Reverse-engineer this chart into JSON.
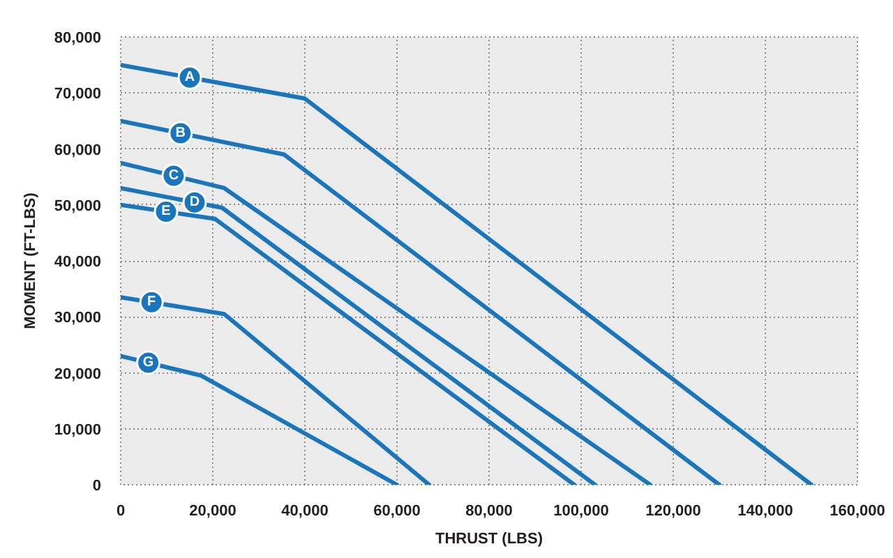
{
  "chart_data": {
    "type": "line",
    "xlabel": "THRUST (LBS)",
    "ylabel": "MOMENT (FT-LBS)",
    "xlim": [
      0,
      160000
    ],
    "ylim": [
      0,
      80000
    ],
    "xticks": [
      0,
      {
        "value": 20000,
        "label": "20,000"
      },
      {
        "value": 40000,
        "label": "40,000"
      },
      {
        "value": 60000,
        "label": "60,000"
      },
      {
        "value": 80000,
        "label": "80,000"
      },
      {
        "value": 100000,
        "label": "100,000"
      },
      {
        "value": 120000,
        "label": "120,000"
      },
      {
        "value": 140000,
        "label": "140,000"
      },
      {
        "value": 160000,
        "label": "160,000"
      }
    ],
    "yticks": [
      0,
      {
        "value": 10000,
        "label": "10,000"
      },
      {
        "value": 20000,
        "label": "20,000"
      },
      {
        "value": 30000,
        "label": "30,000"
      },
      {
        "value": 40000,
        "label": "40,000"
      },
      {
        "value": 50000,
        "label": "50,000"
      },
      {
        "value": 60000,
        "label": "60,000"
      },
      {
        "value": 70000,
        "label": "70,000"
      },
      {
        "value": 80000,
        "label": "80,000"
      }
    ],
    "grid": true,
    "series": [
      {
        "name": "A",
        "color": "#1a76bc",
        "x": [
          0,
          40000,
          150000
        ],
        "values": [
          75000,
          69000,
          0
        ]
      },
      {
        "name": "B",
        "color": "#1a76bc",
        "x": [
          0,
          35500,
          130000
        ],
        "values": [
          65000,
          59000,
          0
        ]
      },
      {
        "name": "C",
        "color": "#1a76bc",
        "x": [
          0,
          22500,
          115000
        ],
        "values": [
          57500,
          53000,
          0
        ]
      },
      {
        "name": "D",
        "color": "#1a76bc",
        "x": [
          0,
          22000,
          103000
        ],
        "values": [
          53000,
          49500,
          0
        ]
      },
      {
        "name": "E",
        "color": "#1a76bc",
        "x": [
          0,
          20500,
          98500
        ],
        "values": [
          50000,
          47500,
          0
        ]
      },
      {
        "name": "F",
        "color": "#1a76bc",
        "x": [
          0,
          22500,
          67000
        ],
        "values": [
          33500,
          30500,
          0
        ]
      },
      {
        "name": "G",
        "color": "#1a76bc",
        "x": [
          0,
          17500,
          60000
        ],
        "values": [
          23000,
          19500,
          0
        ]
      }
    ]
  }
}
